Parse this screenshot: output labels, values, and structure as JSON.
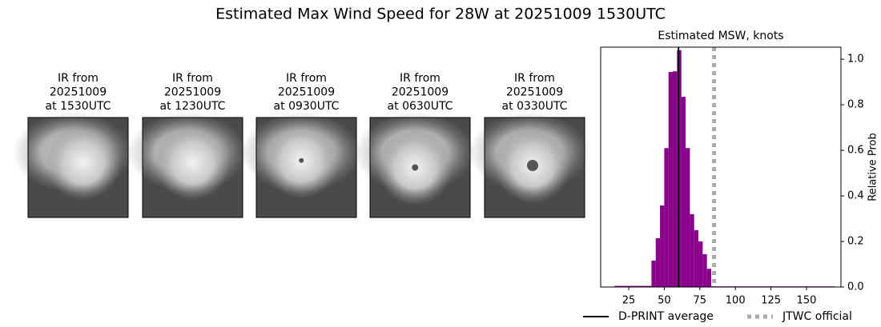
{
  "title": "Estimated Max Wind Speed for 28W at 20251009 1530UTC",
  "panels": [
    {
      "lines": [
        "IR from",
        "20251009",
        "at 1530UTC"
      ]
    },
    {
      "lines": [
        "IR from",
        "20251009",
        "at 1230UTC"
      ]
    },
    {
      "lines": [
        "IR from",
        "20251009",
        "at 0930UTC"
      ]
    },
    {
      "lines": [
        "IR from",
        "20251009",
        "at 0630UTC"
      ]
    },
    {
      "lines": [
        "IR from",
        "20251009",
        "at 0330UTC"
      ]
    }
  ],
  "chart_data": {
    "type": "histogram",
    "title": "Estimated MSW, knots",
    "y_label": "Relative Prob",
    "bins": [
      15,
      41,
      44,
      47,
      50,
      53,
      56,
      59,
      62,
      65,
      68,
      71,
      74,
      77,
      80,
      83,
      170
    ],
    "values": [
      0.005,
      0.116,
      0.214,
      0.358,
      0.61,
      0.944,
      0.947,
      1.04,
      0.835,
      0.61,
      0.32,
      0.25,
      0.2,
      0.144,
      0.08,
      0.003
    ],
    "color": "#8b008b",
    "xlim": [
      5.3,
      174.2
    ],
    "xticks": [
      25,
      50,
      75,
      100,
      125,
      150
    ],
    "ylim": [
      0,
      1.053
    ],
    "yticks": [
      {
        "value": 0,
        "label": "0.0"
      },
      0.2,
      0.4,
      0.6,
      0.8,
      {
        "value": 1,
        "label": "1.0"
      }
    ],
    "reference_lines": [
      {
        "name": "D-PRINT average",
        "value": 60,
        "color": "#000000",
        "style": "solid"
      },
      {
        "name": "JTWC official",
        "value": 85,
        "color": "#aaaaaa",
        "style": "dotted"
      }
    ]
  }
}
